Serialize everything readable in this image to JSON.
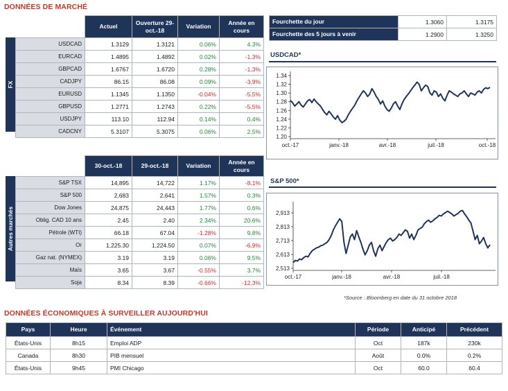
{
  "market_title": "DONNÉES DE MARCHÉ",
  "fx": {
    "side_label": "FX",
    "headers": [
      "Actuel",
      "Ouverture 29-oct.-18",
      "Variation",
      "Année en cours"
    ],
    "rows": [
      {
        "pair": "USDCAD",
        "actuel": "1.3129",
        "ouverture": "1.3121",
        "variation": "0.06%",
        "annee": "4.3%"
      },
      {
        "pair": "EURCAD",
        "actuel": "1.4895",
        "ouverture": "1.4892",
        "variation": "0.02%",
        "annee": "-1.3%"
      },
      {
        "pair": "GBPCAD",
        "actuel": "1.6767",
        "ouverture": "1.6720",
        "variation": "0.28%",
        "annee": "-1.3%"
      },
      {
        "pair": "CADJPY",
        "actuel": "86.15",
        "ouverture": "86.08",
        "variation": "0.09%",
        "annee": "-3.9%"
      },
      {
        "pair": "EURUSD",
        "actuel": "1.1345",
        "ouverture": "1.1350",
        "variation": "-0.04%",
        "annee": "-5.5%"
      },
      {
        "pair": "GBPUSD",
        "actuel": "1.2771",
        "ouverture": "1.2743",
        "variation": "0.22%",
        "annee": "-5.5%"
      },
      {
        "pair": "USDJPY",
        "actuel": "113.10",
        "ouverture": "112.94",
        "variation": "0.14%",
        "annee": "0.4%"
      },
      {
        "pair": "CADCNY",
        "actuel": "5.3107",
        "ouverture": "5.3075",
        "variation": "0.06%",
        "annee": "2.5%"
      }
    ]
  },
  "others": {
    "side_label": "Autres marchés",
    "headers": [
      "30-oct.-18",
      "29-oct.-18",
      "Variation",
      "Année en cours"
    ],
    "rows": [
      {
        "name": "S&P TSX",
        "a": "14,895",
        "b": "14,722",
        "variation": "1.17%",
        "annee": "-8.1%"
      },
      {
        "name": "S&P 500",
        "a": "2,683",
        "b": "2,641",
        "variation": "1.57%",
        "annee": "0.3%"
      },
      {
        "name": "Dow Jones",
        "a": "24,875",
        "b": "24,443",
        "variation": "1.77%",
        "annee": "0.6%"
      },
      {
        "name": "Oblig. CAD 10 ans",
        "a": "2.45",
        "b": "2.40",
        "variation": "2.34%",
        "annee": "20.6%"
      },
      {
        "name": "Pétrole (WTI)",
        "a": "66.18",
        "b": "67.04",
        "variation": "-1.28%",
        "annee": "9.8%"
      },
      {
        "name": "Or",
        "a": "1,225.30",
        "b": "1,224.50",
        "variation": "0.07%",
        "annee": "-6.9%"
      },
      {
        "name": "Gaz nat. (NYMEX)",
        "a": "3.19",
        "b": "3.19",
        "variation": "0.06%",
        "annee": "9.5%"
      },
      {
        "name": "Maïs",
        "a": "3.65",
        "b": "3.67",
        "variation": "-0.55%",
        "annee": "3.7%"
      },
      {
        "name": "Soja",
        "a": "8.34",
        "b": "8.39",
        "variation": "-0.66%",
        "annee": "-12.3%"
      }
    ]
  },
  "ranges": [
    {
      "label": "Fourchette du jour",
      "low": "1.3060",
      "high": "1.3175"
    },
    {
      "label": "Fourchette des 5 jours à venir",
      "low": "1.2900",
      "high": "1.3250"
    }
  ],
  "chart_data": [
    {
      "type": "line",
      "title": "USDCAD*",
      "x_ticks": [
        "oct.-17",
        "janv.-18",
        "avr.-18",
        "juil.-18",
        "oct.-18"
      ],
      "y_ticks": [
        "1.34",
        "1.32",
        "1.30",
        "1.28",
        "1.26",
        "1.24",
        "1.22",
        "1.20"
      ],
      "ylim": [
        1.2,
        1.34
      ],
      "series": [
        {
          "x": [
            0,
            4,
            8,
            12,
            16,
            20,
            24,
            28,
            32,
            36,
            40,
            44,
            48,
            52,
            56,
            60,
            64,
            68,
            72,
            76,
            80,
            84,
            88,
            92,
            96,
            100,
            104,
            108,
            112,
            116,
            120,
            124,
            128,
            132,
            136,
            140,
            144,
            148,
            152,
            156,
            160,
            164,
            168,
            172,
            176,
            180,
            184,
            188,
            192,
            196,
            200,
            204,
            208,
            212,
            216,
            220,
            224,
            228,
            232,
            236,
            240,
            244,
            248,
            252,
            256,
            260,
            264,
            268,
            272,
            276,
            280,
            284,
            288,
            292,
            296,
            300,
            304,
            308,
            312,
            316,
            320,
            324,
            328,
            332,
            336,
            340,
            344,
            348,
            352,
            356,
            360,
            364,
            368,
            372
          ],
          "values": [
            1.283,
            1.278,
            1.27,
            1.275,
            1.28,
            1.272,
            1.268,
            1.275,
            1.282,
            1.285,
            1.278,
            1.286,
            1.28,
            1.275,
            1.27,
            1.262,
            1.255,
            1.25,
            1.258,
            1.252,
            1.245,
            1.24,
            1.248,
            1.238,
            1.232,
            1.235,
            1.24,
            1.25,
            1.258,
            1.265,
            1.272,
            1.282,
            1.29,
            1.298,
            1.305,
            1.3,
            1.292,
            1.298,
            1.31,
            1.302,
            1.292,
            1.285,
            1.275,
            1.282,
            1.27,
            1.262,
            1.258,
            1.265,
            1.275,
            1.28,
            1.27,
            1.262,
            1.275,
            1.285,
            1.292,
            1.298,
            1.305,
            1.312,
            1.318,
            1.325,
            1.32,
            1.305,
            1.312,
            1.318,
            1.315,
            1.3,
            1.295,
            1.305,
            1.302,
            1.292,
            1.298,
            1.288,
            1.282,
            1.295,
            1.305,
            1.302,
            1.298,
            1.295,
            1.292,
            1.298,
            1.3,
            1.305,
            1.298,
            1.292,
            1.3,
            1.298,
            1.295,
            1.302,
            1.305,
            1.3,
            1.308,
            1.312,
            1.31,
            1.313
          ]
        }
      ]
    },
    {
      "type": "line",
      "title": "S&P 500*",
      "x_ticks": [
        "oct.-17",
        "janv.-18",
        "avr.-18",
        "juil.-18"
      ],
      "y_ticks": [
        "2,913",
        "2,813",
        "2,713",
        "2,613",
        "2,513"
      ],
      "ylim": [
        2513,
        2963
      ],
      "series": [
        {
          "x": [
            0,
            4,
            8,
            12,
            16,
            20,
            24,
            28,
            32,
            36,
            40,
            44,
            48,
            52,
            56,
            60,
            64,
            68,
            72,
            76,
            80,
            84,
            88,
            92,
            96,
            100,
            104,
            108,
            112,
            116,
            120,
            124,
            128,
            132,
            136,
            140,
            144,
            148,
            152,
            156,
            160,
            164,
            168,
            172,
            176,
            180,
            184,
            188,
            192,
            196,
            200,
            204,
            208,
            212,
            216,
            220,
            224,
            228,
            232,
            236,
            240,
            244,
            248,
            252,
            256,
            260,
            264,
            268,
            272,
            276,
            280,
            284,
            288,
            292,
            296,
            300,
            304,
            308,
            312,
            316,
            320,
            324,
            328,
            332,
            336,
            340,
            344,
            348,
            352,
            356,
            360,
            364,
            368,
            372
          ],
          "values": [
            2555,
            2570,
            2565,
            2580,
            2575,
            2590,
            2600,
            2595,
            2620,
            2640,
            2650,
            2660,
            2665,
            2675,
            2680,
            2690,
            2700,
            2720,
            2750,
            2790,
            2820,
            2845,
            2870,
            2850,
            2700,
            2620,
            2680,
            2740,
            2760,
            2720,
            2785,
            2740,
            2700,
            2650,
            2610,
            2640,
            2680,
            2700,
            2640,
            2600,
            2655,
            2680,
            2640,
            2670,
            2700,
            2720,
            2730,
            2710,
            2720,
            2735,
            2760,
            2750,
            2770,
            2790,
            2780,
            2730,
            2760,
            2720,
            2750,
            2790,
            2800,
            2810,
            2835,
            2850,
            2860,
            2845,
            2855,
            2870,
            2880,
            2895,
            2890,
            2905,
            2915,
            2925,
            2915,
            2905,
            2890,
            2900,
            2910,
            2925,
            2930,
            2905,
            2885,
            2860,
            2840,
            2780,
            2720,
            2750,
            2690,
            2710,
            2735,
            2690,
            2660,
            2683
          ]
        }
      ]
    }
  ],
  "source_note": "*Source : Bloomberg en date du  31 octobre 2018",
  "econ": {
    "title": "DONNÉES ÉCONOMIQUES À SURVEILLER AUJOURD'HUI",
    "headers": [
      "Pays",
      "Heure",
      "Événement",
      "Période",
      "Anticipé",
      "Précédent"
    ],
    "rows": [
      {
        "pays": "États-Unis",
        "heure": "8h15",
        "evenement": "Emploi ADP",
        "periode": "Oct",
        "anticipe": "187k",
        "precedent": "230k"
      },
      {
        "pays": "Canada",
        "heure": "8h30",
        "evenement": "PIB mensuel",
        "periode": "Août",
        "anticipe": "0.0%",
        "precedent": "0.2%"
      },
      {
        "pays": "États-Unis",
        "heure": "9h45",
        "evenement": "PMI Chicago",
        "periode": "Oct",
        "anticipe": "60.0",
        "precedent": "60.4"
      }
    ]
  },
  "colors": {
    "navy": "#1f3459",
    "positive": "#1f8a3a",
    "negative": "#d22a2a",
    "accent_title": "#c0392b"
  }
}
